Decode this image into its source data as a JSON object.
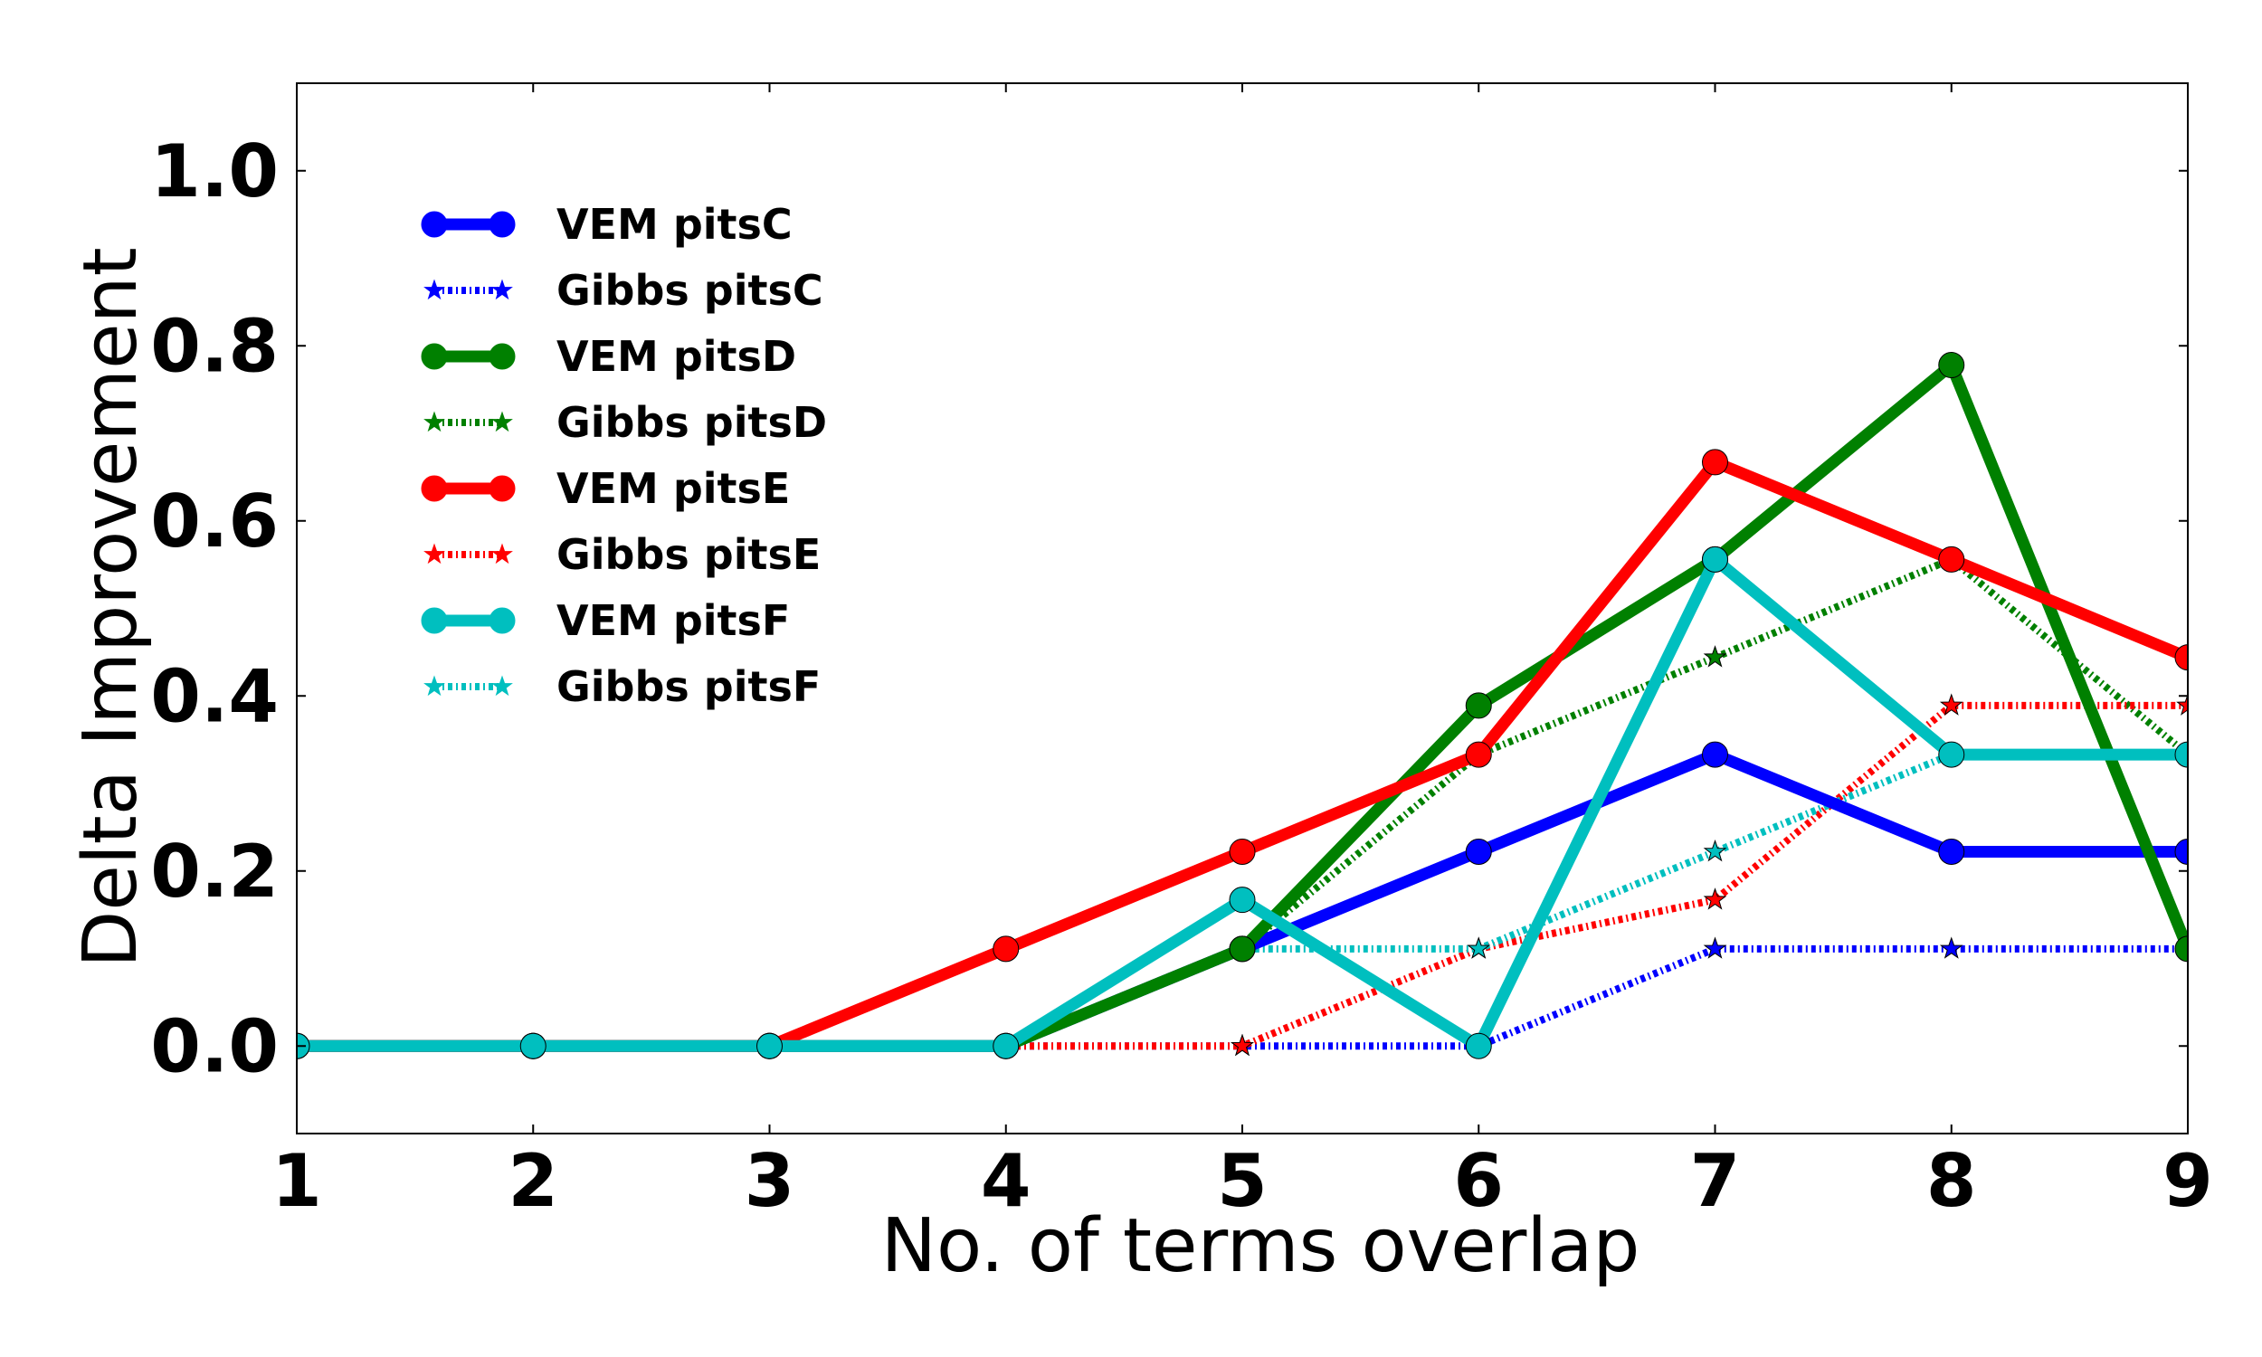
{
  "chart_data": {
    "type": "line",
    "title": "",
    "xlabel": "No. of terms overlap",
    "ylabel": "Delta Improvement",
    "xlim": [
      1,
      9
    ],
    "ylim": [
      -0.1,
      1.1
    ],
    "xticks": [
      1,
      2,
      3,
      4,
      5,
      6,
      7,
      8,
      9
    ],
    "yticks": [
      0.0,
      0.2,
      0.4,
      0.6,
      0.8,
      1.0
    ],
    "ytick_labels": [
      "0.0",
      "0.2",
      "0.4",
      "0.6",
      "0.8",
      "1.0"
    ],
    "xtick_labels": [
      "1",
      "2",
      "3",
      "4",
      "5",
      "6",
      "7",
      "8",
      "9"
    ],
    "grid": false,
    "legend_position": "upper-left",
    "x": [
      1,
      2,
      3,
      4,
      5,
      6,
      7,
      8,
      9
    ],
    "series": [
      {
        "name": "Gibbs pitsC",
        "color": "#0000ff",
        "style": "dashdot",
        "marker": "star",
        "values": [
          0,
          0,
          0,
          0,
          0,
          0,
          0.111,
          0.111,
          0.111
        ]
      },
      {
        "name": "Gibbs pitsD",
        "color": "#008000",
        "style": "dashdot",
        "marker": "star",
        "values": [
          0,
          0,
          0,
          0,
          0.111,
          0.333,
          0.444,
          0.556,
          0.333
        ]
      },
      {
        "name": "Gibbs pitsE",
        "color": "#ff0000",
        "style": "dashdot",
        "marker": "star",
        "values": [
          0,
          0,
          0,
          0,
          0,
          0.111,
          0.167,
          0.389,
          0.389
        ]
      },
      {
        "name": "Gibbs pitsF",
        "color": "#00bfbf",
        "style": "dashdot",
        "marker": "star",
        "values": [
          0,
          0,
          0,
          0,
          0.111,
          0.111,
          0.222,
          0.333,
          0.333
        ]
      },
      {
        "name": "VEM pitsC",
        "color": "#0000ff",
        "style": "solid",
        "marker": "circle",
        "values": [
          0,
          0,
          0,
          0,
          0.111,
          0.222,
          0.333,
          0.222,
          0.222
        ]
      },
      {
        "name": "VEM pitsD",
        "color": "#008000",
        "style": "solid",
        "marker": "circle",
        "values": [
          0,
          0,
          0,
          0,
          0.111,
          0.389,
          0.556,
          0.778,
          0.111
        ]
      },
      {
        "name": "VEM pitsE",
        "color": "#ff0000",
        "style": "solid",
        "marker": "circle",
        "values": [
          0,
          0,
          0,
          0.111,
          0.222,
          0.333,
          0.667,
          0.556,
          0.444
        ]
      },
      {
        "name": "VEM pitsF",
        "color": "#00bfbf",
        "style": "solid",
        "marker": "circle",
        "values": [
          0,
          0,
          0,
          0,
          0.167,
          0,
          0.556,
          0.333,
          0.333
        ]
      }
    ],
    "legend_order": [
      "VEM pitsC",
      "Gibbs pitsC",
      "VEM pitsD",
      "Gibbs pitsD",
      "VEM pitsE",
      "Gibbs pitsE",
      "VEM pitsF",
      "Gibbs pitsF"
    ]
  }
}
